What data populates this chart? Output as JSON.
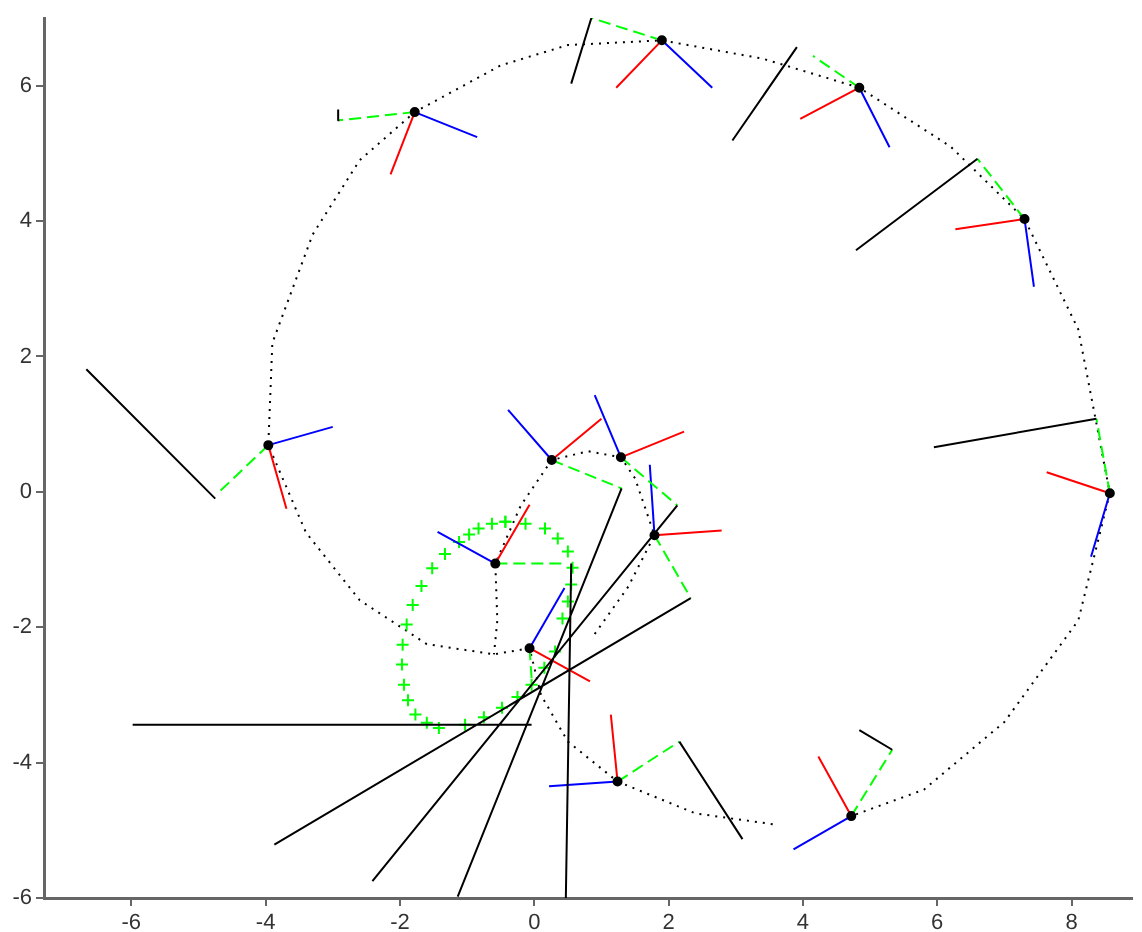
{
  "chart_data": {
    "type": "line",
    "xlim": [
      -7.3,
      8.9
    ],
    "ylim": [
      -6,
      7
    ],
    "xticks": [
      -6,
      -4,
      -2,
      0,
      2,
      4,
      6,
      8
    ],
    "yticks": [
      -6,
      -4,
      -2,
      0,
      2,
      4,
      6
    ],
    "legend": false,
    "marker": "none",
    "series": [
      {
        "type": "line",
        "color": "#000000",
        "line_style": "dotted",
        "x": [
          -0.07,
          -0.6,
          -1.6,
          -2.6,
          -3.4,
          -3.96,
          -3.9,
          -3.3,
          -2.6,
          -1.78,
          -0.5,
          0.5,
          1.9,
          3.4,
          4.84,
          6.2,
          7.3,
          8.1,
          8.57,
          8.1,
          7.0,
          5.8,
          4.72
        ],
        "values": [
          -2.31,
          -2.4,
          -2.25,
          -1.6,
          -0.6,
          0.69,
          2.2,
          3.8,
          4.9,
          5.61,
          6.3,
          6.6,
          6.67,
          6.4,
          5.97,
          5.1,
          4.03,
          2.4,
          -0.02,
          -1.9,
          -3.4,
          -4.4,
          -4.79
        ]
      },
      {
        "type": "line",
        "color": "#000000",
        "line_style": "dotted",
        "x": [
          3.55,
          2.4,
          1.24,
          0.5,
          0.1,
          -0.07
        ],
        "values": [
          -4.91,
          -4.75,
          -4.28,
          -3.69,
          -3.0,
          -2.31
        ]
      },
      {
        "type": "line",
        "color": "#000000",
        "line_style": "dotted",
        "x": [
          0.9,
          1.4,
          1.79,
          1.5,
          1.29,
          0.8,
          0.26,
          -0.2,
          -0.58,
          -0.55,
          -0.6
        ],
        "values": [
          -2.1,
          -1.4,
          -0.64,
          0.2,
          0.51,
          0.6,
          0.47,
          -0.2,
          -1.06,
          -1.9,
          -2.4
        ]
      },
      {
        "type": "scatter",
        "color": "#00ff00",
        "marker": "cross",
        "x": [
          -0.43,
          -0.13,
          0.16,
          0.35,
          0.5,
          0.57,
          0.55,
          0.5,
          0.42,
          0.31,
          0.15,
          -0.04,
          -0.25,
          -0.48,
          -0.75,
          -1.03,
          -1.42,
          -1.6,
          -1.77,
          -1.88,
          -1.94,
          -1.97,
          -1.96,
          -1.9,
          -1.81,
          -1.68,
          -1.52,
          -1.33,
          -1.12,
          -0.97,
          -0.83,
          -0.63,
          -0.43
        ],
        "values": [
          -0.44,
          -0.47,
          -0.54,
          -0.69,
          -0.88,
          -1.12,
          -1.37,
          -1.62,
          -1.87,
          -2.36,
          -2.6,
          -2.85,
          -3.03,
          -3.19,
          -3.33,
          -3.44,
          -3.49,
          -3.41,
          -3.29,
          -3.08,
          -2.85,
          -2.55,
          -2.26,
          -1.96,
          -1.67,
          -1.39,
          -1.13,
          -0.92,
          -0.74,
          -0.63,
          -0.54,
          -0.47,
          -0.44
        ]
      },
      {
        "type": "line",
        "color": "#ff0000",
        "line_style": "solid",
        "x": [
          -3.96,
          -3.69,
          null,
          -1.78,
          -2.14,
          null,
          1.9,
          1.22,
          null,
          4.84,
          3.96,
          null,
          7.3,
          6.27,
          null,
          8.57,
          7.63,
          null,
          4.72,
          4.23,
          null,
          1.24,
          1.14,
          null,
          1.79,
          2.79,
          null,
          0.26,
          1.0,
          null,
          1.29,
          2.23,
          null,
          -0.58,
          -0.07,
          null,
          -0.07,
          0.83
        ],
        "values": [
          0.69,
          -0.25,
          null,
          5.61,
          4.69,
          null,
          6.67,
          5.97,
          null,
          5.97,
          5.51,
          null,
          4.03,
          3.88,
          null,
          -0.02,
          0.29,
          null,
          -4.79,
          -3.91,
          null,
          -4.28,
          -3.29,
          null,
          -0.64,
          -0.57,
          null,
          0.47,
          1.08,
          null,
          0.51,
          0.89,
          null,
          -1.06,
          -0.19,
          null,
          -2.31,
          -2.8
        ]
      },
      {
        "type": "line",
        "color": "#0000ff",
        "line_style": "solid",
        "x": [
          -3.96,
          -3.0,
          null,
          -1.78,
          -0.85,
          null,
          1.9,
          2.65,
          null,
          4.84,
          5.29,
          null,
          7.3,
          7.44,
          null,
          8.57,
          8.29,
          null,
          4.72,
          3.86,
          null,
          1.24,
          0.22,
          null,
          1.79,
          1.72,
          null,
          0.26,
          -0.39,
          null,
          1.29,
          0.9,
          null,
          -0.58,
          -1.44,
          null,
          -0.07,
          0.45
        ],
        "values": [
          0.69,
          0.96,
          null,
          5.61,
          5.24,
          null,
          6.67,
          5.97,
          null,
          5.97,
          5.09,
          null,
          4.03,
          3.03,
          null,
          -0.02,
          -0.96,
          null,
          -4.79,
          -5.28,
          null,
          -4.28,
          -4.35,
          null,
          -0.64,
          0.4,
          null,
          0.47,
          1.21,
          null,
          0.51,
          1.43,
          null,
          -1.06,
          -0.59,
          null,
          -2.31,
          -1.42
        ]
      },
      {
        "type": "line",
        "color": "#00ff00",
        "line_style": "dashed",
        "x": [
          -3.96,
          -4.67,
          null,
          -1.78,
          -2.9,
          null,
          1.9,
          0.85,
          null,
          4.84,
          4.15,
          null,
          7.3,
          6.6,
          null,
          8.57,
          8.37,
          null,
          4.72,
          5.33,
          null,
          1.24,
          2.16,
          null,
          1.79,
          2.33,
          null,
          0.26,
          1.3,
          null,
          1.29,
          2.13,
          null,
          -0.58,
          0.46,
          null,
          -0.07,
          -0.04
        ],
        "values": [
          0.69,
          0.02,
          null,
          5.61,
          5.49,
          null,
          6.67,
          7.0,
          null,
          5.97,
          6.44,
          null,
          4.03,
          4.92,
          null,
          -0.02,
          1.08,
          null,
          -4.79,
          -3.81,
          null,
          -4.28,
          -3.69,
          null,
          -0.64,
          -1.57,
          null,
          0.47,
          0.05,
          null,
          0.51,
          -0.2,
          null,
          -1.06,
          -1.06,
          null,
          -2.31,
          -2.75
        ]
      },
      {
        "type": "line",
        "color": "#000000",
        "line_style": "solid",
        "x": [
          -4.75,
          -6.67,
          null,
          -2.9,
          -2.92,
          null,
          0.85,
          0.55,
          null,
          3.91,
          2.95,
          null,
          6.6,
          4.79,
          null,
          8.37,
          5.95,
          null,
          5.33,
          4.84,
          null,
          2.16,
          3.1,
          null,
          2.33,
          -3.87,
          null,
          1.3,
          -1.14,
          null,
          2.13,
          -2.41,
          null,
          0.55,
          0.47,
          null,
          -0.04,
          -5.98
        ],
        "values": [
          -0.1,
          1.81,
          null,
          5.49,
          5.65,
          null,
          7.0,
          6.03,
          null,
          6.57,
          5.19,
          null,
          4.92,
          3.57,
          null,
          1.08,
          0.66,
          null,
          -3.81,
          -3.52,
          null,
          -3.69,
          -5.13,
          null,
          -1.57,
          -5.21,
          null,
          0.05,
          -5.98,
          null,
          -0.2,
          -5.75,
          null,
          -1.06,
          -6.0,
          null,
          -3.44,
          -3.44
        ]
      },
      {
        "type": "scatter",
        "color": "#000000",
        "marker": "circle",
        "x": [
          -3.96,
          -1.78,
          1.9,
          4.84,
          7.3,
          8.57,
          4.72,
          1.24,
          1.79,
          0.26,
          1.29,
          -0.58,
          -0.07
        ],
        "values": [
          0.69,
          5.61,
          6.67,
          5.97,
          4.03,
          -0.02,
          -4.79,
          -4.28,
          -0.64,
          0.47,
          0.51,
          -1.06,
          -2.31
        ]
      }
    ]
  }
}
